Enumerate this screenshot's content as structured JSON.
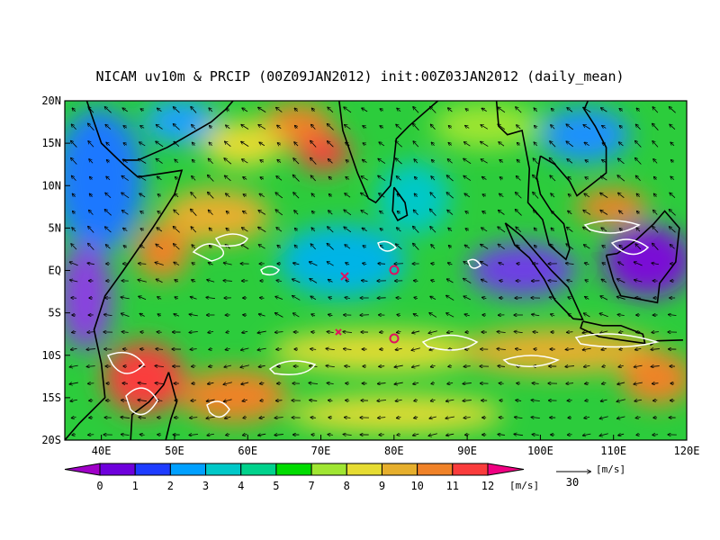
{
  "title": "NICAM uv10m & PRCIP (00Z09JAN2012) init:00Z03JAN2012 (daily_mean)",
  "xlim": [
    35,
    120
  ],
  "ylim": [
    -20,
    20
  ],
  "xticks": [
    {
      "value": 40,
      "label": "40E"
    },
    {
      "value": 50,
      "label": "50E"
    },
    {
      "value": 60,
      "label": "60E"
    },
    {
      "value": 70,
      "label": "70E"
    },
    {
      "value": 80,
      "label": "80E"
    },
    {
      "value": 90,
      "label": "90E"
    },
    {
      "value": 100,
      "label": "100E"
    },
    {
      "value": 110,
      "label": "110E"
    },
    {
      "value": 120,
      "label": "120E"
    }
  ],
  "yticks": [
    {
      "value": 20,
      "label": "20N"
    },
    {
      "value": 15,
      "label": "15N"
    },
    {
      "value": 10,
      "label": "10N"
    },
    {
      "value": 5,
      "label": "5N"
    },
    {
      "value": 0,
      "label": "EQ"
    },
    {
      "value": -5,
      "label": "5S"
    },
    {
      "value": -10,
      "label": "10S"
    },
    {
      "value": -15,
      "label": "15S"
    },
    {
      "value": -20,
      "label": "20S"
    }
  ],
  "colorbar": {
    "levels": [
      0,
      1,
      2,
      3,
      4,
      5,
      7,
      8,
      9,
      10,
      11,
      12
    ],
    "colors": [
      "#a000c8",
      "#6e00dc",
      "#1e3cff",
      "#00a0ff",
      "#00c8c8",
      "#00d28c",
      "#00dc00",
      "#a0e632",
      "#e6dc32",
      "#e6af2d",
      "#f08228",
      "#fa3c3c",
      "#f00082"
    ],
    "unit": "[m/s]"
  },
  "reference_vector": {
    "value": 30,
    "unit": "[m/s]"
  }
}
